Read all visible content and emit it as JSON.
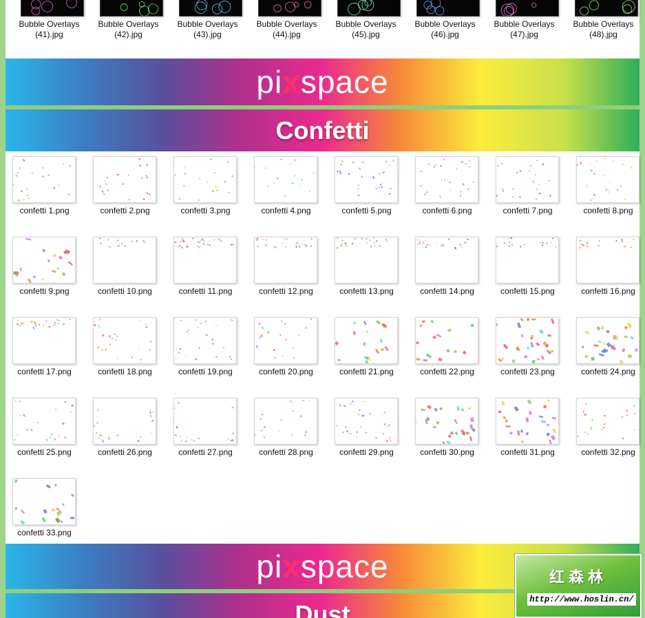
{
  "colors": {
    "confetti": [
      "#c58a3e",
      "#e0525e",
      "#98c24a",
      "#55cfc6",
      "#5a6fd1",
      "#c86ad8",
      "#d95fa6",
      "#e6c84a",
      "#44c257",
      "#e84a4a"
    ],
    "bubbles": [
      "#ff6fd8",
      "#7dff7a",
      "#6fd9ff",
      "#ff7ab8",
      "#8affc0",
      "#6fb8ff",
      "#ff8ae6",
      "#9cff8a"
    ]
  },
  "banners": {
    "pixspace_1": {
      "pre": "pi",
      "x": "x",
      "post": "space"
    },
    "pixspace_2": {
      "pre": "pi",
      "x": "x",
      "post": "space"
    }
  },
  "sections": {
    "confetti_title": "Confetti",
    "dust_title": "Dust"
  },
  "bubble_files": [
    [
      "Bubble Overlays",
      "(41).jpg"
    ],
    [
      "Bubble Overlays",
      "(42).jpg"
    ],
    [
      "Bubble Overlays",
      "(43).jpg"
    ],
    [
      "Bubble Overlays",
      "(44).jpg"
    ],
    [
      "Bubble Overlays",
      "(45).jpg"
    ],
    [
      "Bubble Overlays",
      "(46).jpg"
    ],
    [
      "Bubble Overlays",
      "(47).jpg"
    ],
    [
      "Bubble Overlays",
      "(48).jpg"
    ]
  ],
  "confetti_files": [
    "confetti 1.png",
    "confetti 2.png",
    "confetti 3.png",
    "confetti 4.png",
    "confetti 5.png",
    "confetti 6.png",
    "confetti 7.png",
    "confetti 8.png",
    "confetti 9.png",
    "confetti 10.png",
    "confetti 11.png",
    "confetti 12.png",
    "confetti 13.png",
    "confetti 14.png",
    "confetti 15.png",
    "confetti 16.png",
    "confetti 17.png",
    "confetti 18.png",
    "confetti 19.png",
    "confetti 20.png",
    "confetti 21.png",
    "confetti 22.png",
    "confetti 23.png",
    "confetti 24.png",
    "confetti 25.png",
    "confetti 26.png",
    "confetti 27.png",
    "confetti 28.png",
    "confetti 29.png",
    "confetti 30.png",
    "confetti 31.png",
    "confetti 32.png",
    "confetti 33.png"
  ],
  "watermark": {
    "title": "红森林",
    "url": "http://www.hoslin.cn/"
  }
}
